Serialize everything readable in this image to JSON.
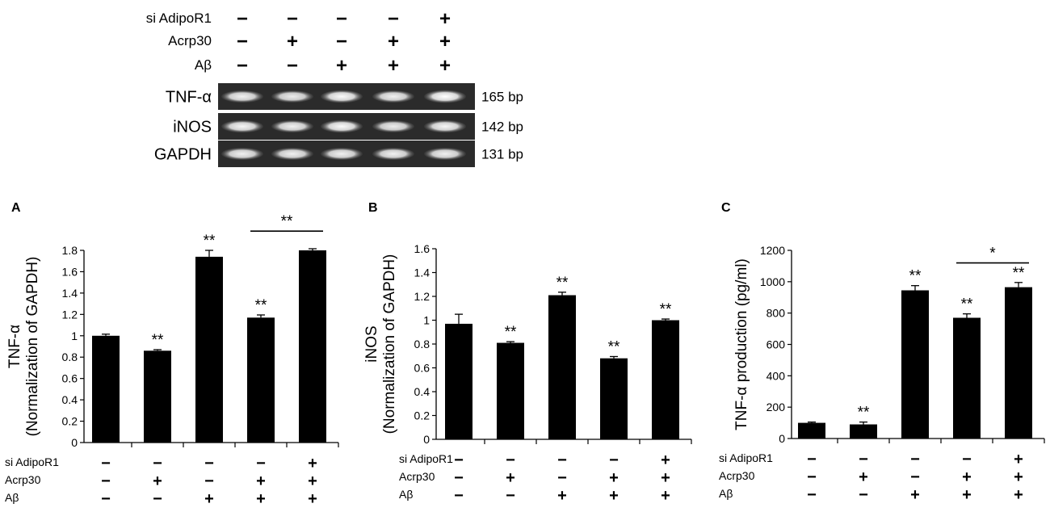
{
  "gel": {
    "conditions": [
      {
        "label": "si AdipoR1",
        "signs": [
          "−",
          "−",
          "−",
          "−",
          "+"
        ]
      },
      {
        "label": "Acrp30",
        "signs": [
          "−",
          "+",
          "−",
          "+",
          "+"
        ]
      },
      {
        "label": "Aβ",
        "signs": [
          "−",
          "−",
          "+",
          "+",
          "+"
        ]
      }
    ],
    "rows": [
      {
        "label": "TNF-α",
        "size": "165 bp",
        "intensity": [
          0.85,
          0.8,
          0.95,
          0.85,
          1.0
        ]
      },
      {
        "label": "iNOS",
        "size": "142 bp",
        "intensity": [
          0.9,
          0.85,
          0.95,
          0.8,
          0.9
        ]
      },
      {
        "label": "GAPDH",
        "size": "131 bp",
        "intensity": [
          0.85,
          0.85,
          0.85,
          0.85,
          0.85
        ]
      }
    ]
  },
  "chart_data": [
    {
      "type": "bar",
      "panel": "A",
      "ylabel": [
        "TNF-α",
        "(Normalization of GAPDH)"
      ],
      "ylim": [
        0,
        1.8
      ],
      "yticks": [
        "0",
        "0.2",
        "0.4",
        "0.6",
        "0.8",
        "1",
        "1.2",
        "1.4",
        "1.6",
        "1.8"
      ],
      "yticks_values": [
        0,
        0.2,
        0.4,
        0.6,
        0.8,
        1.0,
        1.2,
        1.4,
        1.6,
        1.8
      ],
      "values": [
        1.0,
        0.86,
        1.74,
        1.17,
        1.8
      ],
      "errors": [
        0.015,
        0.01,
        0.06,
        0.025,
        0.015
      ],
      "significance": [
        "",
        "**",
        "**",
        "**",
        ""
      ],
      "bracket": {
        "from": 3,
        "to": 4,
        "label": "**",
        "y": 1.98
      },
      "conditions": [
        {
          "label": "si AdipoR1",
          "signs": [
            "−",
            "−",
            "−",
            "−",
            "+"
          ]
        },
        {
          "label": "Acrp30",
          "signs": [
            "−",
            "+",
            "−",
            "+",
            "+"
          ]
        },
        {
          "label": "Aβ",
          "signs": [
            "−",
            "−",
            "+",
            "+",
            "+"
          ]
        }
      ]
    },
    {
      "type": "bar",
      "panel": "B",
      "ylabel": [
        "iNOS",
        "(Normalization of GAPDH)"
      ],
      "ylim": [
        0,
        1.6
      ],
      "yticks": [
        "0",
        "0.2",
        "0.4",
        "0.6",
        "0.8",
        "1",
        "1.2",
        "1.4",
        "1.6"
      ],
      "yticks_values": [
        0,
        0.2,
        0.4,
        0.6,
        0.8,
        1.0,
        1.2,
        1.4,
        1.6
      ],
      "values": [
        0.97,
        0.81,
        1.21,
        0.68,
        1.0
      ],
      "errors": [
        0.08,
        0.01,
        0.025,
        0.015,
        0.01
      ],
      "significance": [
        "",
        "**",
        "**",
        "**",
        "**"
      ],
      "bracket": null,
      "conditions": [
        {
          "label": "si AdipoR1",
          "signs": [
            "−",
            "−",
            "−",
            "−",
            "+"
          ]
        },
        {
          "label": "Acrp30",
          "signs": [
            "−",
            "+",
            "−",
            "+",
            "+"
          ]
        },
        {
          "label": "Aβ",
          "signs": [
            "−",
            "−",
            "+",
            "+",
            "+"
          ]
        }
      ]
    },
    {
      "type": "bar",
      "panel": "C",
      "ylabel": [
        "TNF-α production (pg/ml)"
      ],
      "ylim": [
        0,
        1200
      ],
      "yticks": [
        "0",
        "200",
        "400",
        "600",
        "800",
        "1000",
        "1200"
      ],
      "yticks_values": [
        0,
        200,
        400,
        600,
        800,
        1000,
        1200
      ],
      "values": [
        100,
        90,
        945,
        770,
        965
      ],
      "errors": [
        5,
        15,
        30,
        25,
        30
      ],
      "significance": [
        "",
        "**",
        "**",
        "**",
        "**"
      ],
      "bracket": {
        "from": 3,
        "to": 4,
        "label": "*",
        "y": 1120
      },
      "conditions": [
        {
          "label": "si AdipoR1",
          "signs": [
            "−",
            "−",
            "−",
            "−",
            "+"
          ]
        },
        {
          "label": "Acrp30",
          "signs": [
            "−",
            "+",
            "−",
            "+",
            "+"
          ]
        },
        {
          "label": "Aβ",
          "signs": [
            "−",
            "−",
            "+",
            "+",
            "+"
          ]
        }
      ]
    }
  ]
}
